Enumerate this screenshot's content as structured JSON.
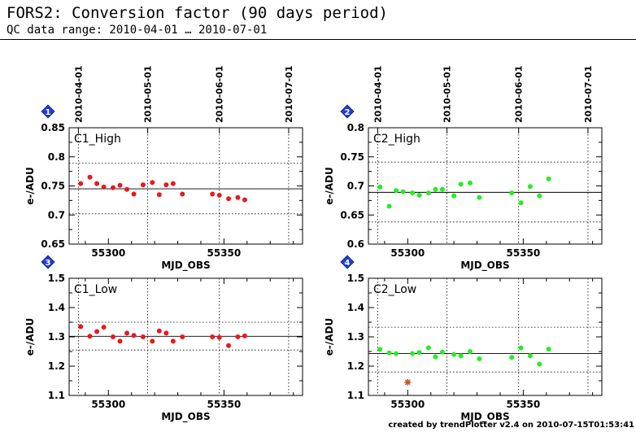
{
  "header": {
    "title": "FORS2: Conversion factor (90 days period)",
    "subtitle": "QC data range: 2010-04-01 … 2010-07-01"
  },
  "footer": {
    "credit": "created by trendPlotter v2.4 on 2010-07-15T01:53:41"
  },
  "colors": {
    "c1": "#e8191e",
    "c2": "#22ee22",
    "outlier": "#c8561e",
    "badge": "#1f3fd6"
  },
  "top_axis": {
    "date_labels": [
      "2010-04-01",
      "2010-05-01",
      "2010-06-01",
      "2010-07-01"
    ],
    "date_mjd": [
      55287,
      55317,
      55348,
      55378
    ]
  },
  "chart_data": [
    {
      "type": "scatter",
      "badge": "1",
      "panel_label": "C1_High",
      "xlabel": "MJD_OBS",
      "ylabel": "e-/ADU",
      "xlim": [
        55283,
        55384
      ],
      "ylim": [
        0.65,
        0.85
      ],
      "yticks": [
        0.65,
        0.7,
        0.75,
        0.8,
        0.85
      ],
      "ytick_labels": [
        "0.65",
        "0.7",
        "0.75",
        "0.8",
        "0.85"
      ],
      "xticks": [
        55300,
        55350
      ],
      "xtick_labels": [
        "55300",
        "55350"
      ],
      "median": 0.745,
      "limits": [
        0.702,
        0.789
      ],
      "color": "c1",
      "show_top_axis": true,
      "x": [
        55288,
        55292,
        55295,
        55298,
        55302,
        55305,
        55308,
        55311,
        55315,
        55319,
        55322,
        55325,
        55328,
        55332,
        55345,
        55348,
        55352,
        55356,
        55359
      ],
      "y": [
        0.754,
        0.765,
        0.754,
        0.748,
        0.747,
        0.751,
        0.744,
        0.736,
        0.752,
        0.756,
        0.735,
        0.752,
        0.754,
        0.736,
        0.736,
        0.734,
        0.728,
        0.73,
        0.726
      ],
      "outliers": []
    },
    {
      "type": "scatter",
      "badge": "2",
      "panel_label": "C2_High",
      "xlabel": "MJD_OBS",
      "ylabel": "e-/ADU",
      "xlim": [
        55283,
        55384
      ],
      "ylim": [
        0.6,
        0.8
      ],
      "yticks": [
        0.6,
        0.65,
        0.7,
        0.75,
        0.8
      ],
      "ytick_labels": [
        "0.6",
        "0.65",
        "0.7",
        "0.75",
        "0.8"
      ],
      "xticks": [
        55300,
        55350
      ],
      "xtick_labels": [
        "55300",
        "55350"
      ],
      "median": 0.689,
      "limits": [
        0.638,
        0.741
      ],
      "color": "c2",
      "show_top_axis": true,
      "x": [
        55288,
        55292,
        55295,
        55298,
        55302,
        55305,
        55309,
        55312,
        55315,
        55320,
        55323,
        55327,
        55331,
        55345,
        55349,
        55353,
        55357,
        55361
      ],
      "y": [
        0.698,
        0.665,
        0.692,
        0.69,
        0.688,
        0.684,
        0.688,
        0.694,
        0.694,
        0.683,
        0.703,
        0.705,
        0.68,
        0.688,
        0.671,
        0.699,
        0.683,
        0.712
      ],
      "outliers": []
    },
    {
      "type": "scatter",
      "badge": "3",
      "panel_label": "C1_Low",
      "xlabel": "MJD_OBS",
      "ylabel": "e-/ADU",
      "xlim": [
        55283,
        55384
      ],
      "ylim": [
        1.1,
        1.5
      ],
      "yticks": [
        1.1,
        1.2,
        1.3,
        1.4,
        1.5
      ],
      "ytick_labels": [
        "1.1",
        "1.2",
        "1.3",
        "1.4",
        "1.5"
      ],
      "xticks": [
        55300,
        55350
      ],
      "xtick_labels": [
        "55300",
        "55350"
      ],
      "median": 1.302,
      "limits": [
        1.255,
        1.35
      ],
      "color": "c1",
      "show_top_axis": false,
      "x": [
        55288,
        55292,
        55295,
        55298,
        55302,
        55305,
        55308,
        55311,
        55315,
        55319,
        55322,
        55325,
        55328,
        55332,
        55345,
        55348,
        55352,
        55356,
        55359
      ],
      "y": [
        1.335,
        1.302,
        1.318,
        1.333,
        1.3,
        1.285,
        1.313,
        1.305,
        1.3,
        1.285,
        1.32,
        1.313,
        1.285,
        1.3,
        1.3,
        1.298,
        1.27,
        1.3,
        1.303
      ],
      "outliers": []
    },
    {
      "type": "scatter",
      "badge": "4",
      "panel_label": "C2_Low",
      "xlabel": "MJD_OBS",
      "ylabel": "e-/ADU",
      "xlim": [
        55283,
        55384
      ],
      "ylim": [
        1.1,
        1.5
      ],
      "yticks": [
        1.1,
        1.2,
        1.3,
        1.4,
        1.5
      ],
      "ytick_labels": [
        "1.1",
        "1.2",
        "1.3",
        "1.4",
        "1.5"
      ],
      "xticks": [
        55300,
        55350
      ],
      "xtick_labels": [
        "55300",
        "55350"
      ],
      "median": 1.243,
      "limits": [
        1.18,
        1.333
      ],
      "color": "c2",
      "show_top_axis": false,
      "x": [
        55288,
        55292,
        55295,
        55302,
        55305,
        55309,
        55312,
        55315,
        55320,
        55323,
        55327,
        55331,
        55345,
        55349,
        55353,
        55357,
        55361
      ],
      "y": [
        1.257,
        1.245,
        1.243,
        1.243,
        1.247,
        1.263,
        1.232,
        1.248,
        1.24,
        1.235,
        1.25,
        1.225,
        1.23,
        1.262,
        1.235,
        1.207,
        1.258
      ],
      "outliers": [
        {
          "x": 55300,
          "y": 1.145
        }
      ]
    }
  ]
}
